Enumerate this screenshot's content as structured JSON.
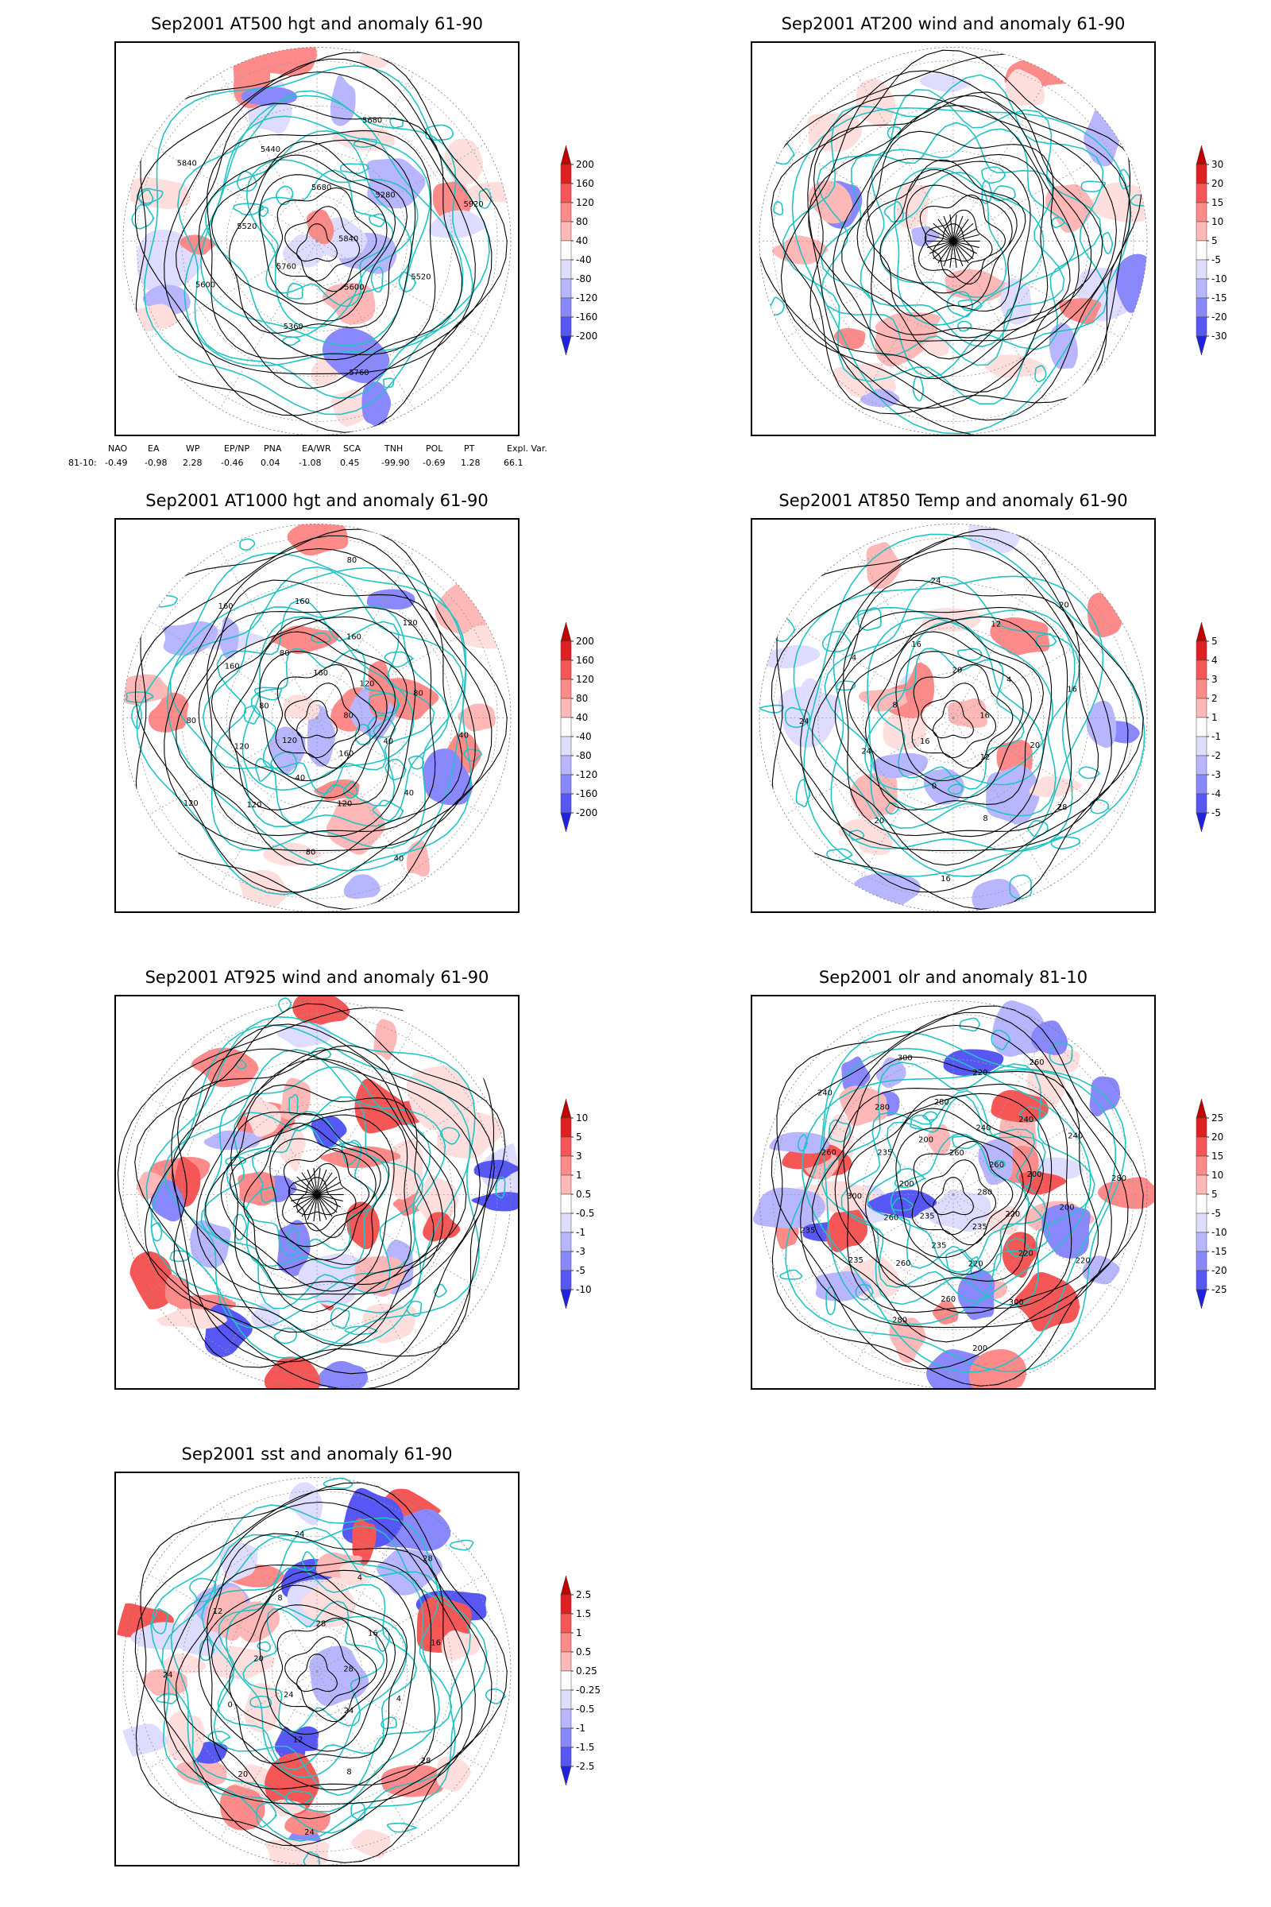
{
  "colors": {
    "coast": "#22c3c3",
    "frame": "#000000",
    "contour": "#000000",
    "pos": [
      "#ffffff",
      "#ffdede",
      "#ffb8b8",
      "#ff8a8a",
      "#f55757",
      "#e02020",
      "#c00000"
    ],
    "neg": [
      "#ffffff",
      "#dedcff",
      "#b8b6ff",
      "#8a88ff",
      "#5757f5",
      "#2020e0",
      "#0000c0"
    ]
  },
  "panels": [
    {
      "id": "z500",
      "title": "Sep2001 AT500 hgt and anomaly 61-90",
      "kind": "hgt",
      "colorbar": [
        "200",
        "160",
        "120",
        "80",
        "40",
        "-40",
        "-80",
        "-120",
        "-160",
        "-200"
      ],
      "contour_labels": [
        "5840",
        "5760",
        "5680",
        "5600",
        "5520",
        "5280",
        "5360",
        "5440",
        "5520",
        "5600",
        "5680",
        "5760",
        "5840",
        "5920"
      ]
    },
    {
      "id": "u200",
      "title": "Sep2001 AT200 wind and anomaly 61-90",
      "kind": "wind",
      "colorbar": [
        "30",
        "20",
        "15",
        "10",
        "5",
        "-5",
        "-10",
        "-15",
        "-20",
        "-30"
      ],
      "contour_labels": []
    },
    {
      "id": "z1000",
      "title": "Sep2001 AT1000 hgt and anomaly 61-90",
      "kind": "hgt",
      "colorbar": [
        "200",
        "160",
        "120",
        "80",
        "40",
        "-40",
        "-80",
        "-120",
        "-160",
        "-200"
      ],
      "contour_labels": [
        "80",
        "120",
        "160",
        "160",
        "80",
        "120",
        "40",
        "80",
        "40",
        "120",
        "160",
        "120",
        "160",
        "80",
        "120",
        "160",
        "40",
        "80",
        "120",
        "80",
        "160",
        "40",
        "120",
        "80",
        "40"
      ]
    },
    {
      "id": "t850",
      "title": "Sep2001 AT850 Temp and anomaly 61-90",
      "kind": "temp",
      "colorbar": [
        "5",
        "4",
        "3",
        "2",
        "1",
        "-1",
        "-2",
        "-3",
        "-4",
        "-5"
      ],
      "contour_labels": [
        "16",
        "16",
        "20",
        "12",
        "8",
        "4",
        "0",
        "16",
        "20",
        "24",
        "12",
        "8",
        "4",
        "16",
        "20",
        "24",
        "28",
        "24",
        "20",
        "16"
      ]
    },
    {
      "id": "u925",
      "title": "Sep2001 AT925 wind and anomaly 61-90",
      "kind": "wind",
      "colorbar": [
        "10",
        "5",
        "3",
        "1",
        "0.5",
        "-0.5",
        "-1",
        "-3",
        "-5",
        "-10"
      ],
      "contour_labels": []
    },
    {
      "id": "olr",
      "title": "Sep2001 olr and anomaly 81-10",
      "kind": "olr",
      "colorbar": [
        "25",
        "20",
        "15",
        "10",
        "5",
        "-5",
        "-10",
        "-15",
        "-20",
        "-25"
      ],
      "contour_labels": [
        "280",
        "235",
        "260",
        "235",
        "200",
        "260",
        "235",
        "200",
        "220",
        "260",
        "240",
        "220",
        "235",
        "200",
        "260",
        "280",
        "220",
        "300",
        "240",
        "260",
        "280",
        "200",
        "235",
        "220",
        "300",
        "260",
        "240",
        "280",
        "300",
        "220",
        "235",
        "260",
        "200",
        "240",
        "280"
      ]
    },
    {
      "id": "sst",
      "title": "Sep2001 sst and anomaly 61-90",
      "kind": "sst",
      "colorbar": [
        "2.5",
        "1.5",
        "1",
        "0.5",
        "0.25",
        "-0.25",
        "-0.5",
        "-1",
        "-1.5",
        "-2.5"
      ],
      "contour_labels": [
        "28",
        "24",
        "28",
        "24",
        "20",
        "16",
        "12",
        "8",
        "4",
        "0",
        "4",
        "8",
        "12",
        "16",
        "20",
        "24",
        "28",
        "24",
        "28",
        "24"
      ]
    }
  ],
  "index_table": {
    "headers": [
      "NAO",
      "EA",
      "WP",
      "EP/NP",
      "PNA",
      "EA/WR",
      "SCA",
      "TNH",
      "POL",
      "PT",
      "Expl. Var."
    ],
    "row_label": "81-10:",
    "values": [
      "-0.49",
      "-0.98",
      "2.28",
      "-0.46",
      "0.04",
      "-1.08",
      "0.45",
      "-99.90",
      "-0.69",
      "1.28",
      "66.1"
    ]
  }
}
